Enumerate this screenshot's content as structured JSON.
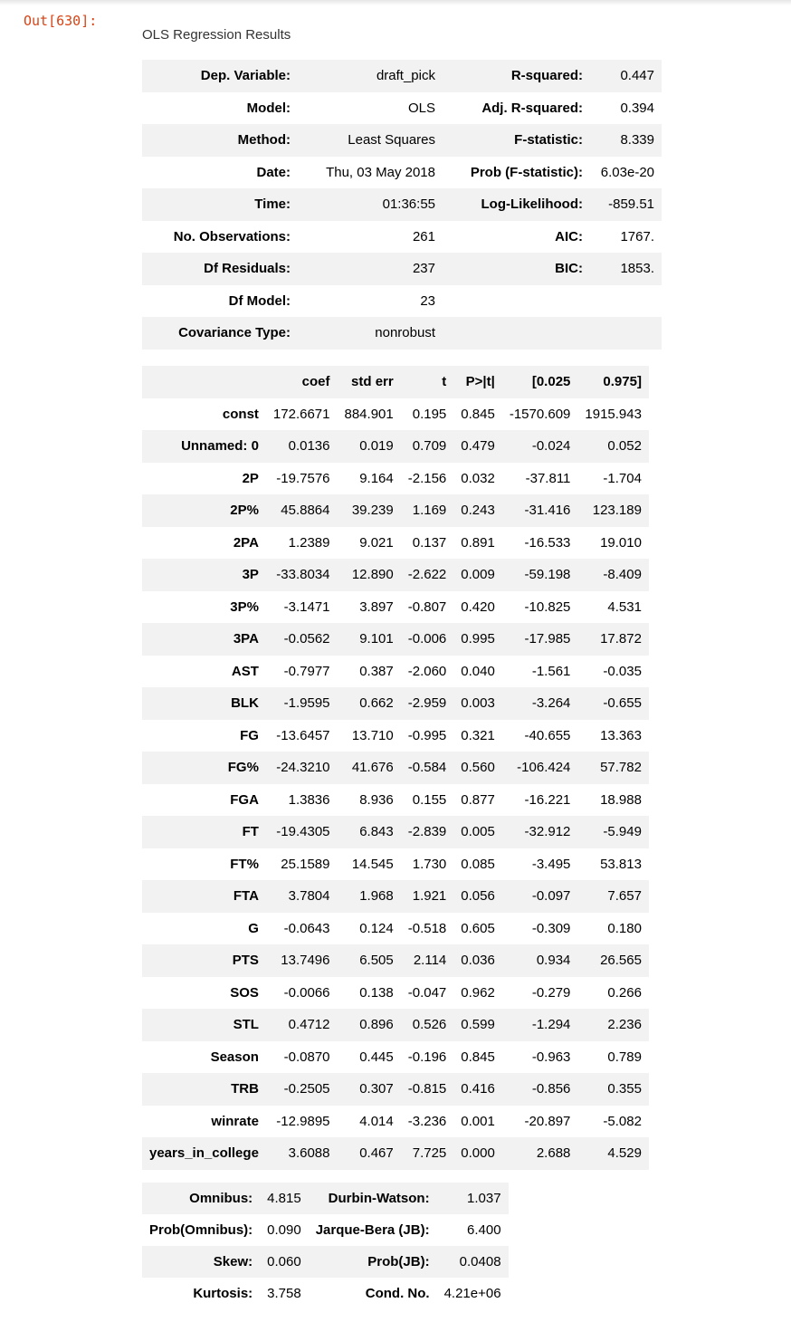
{
  "cell_prompt": "Out[630]:",
  "caption": "OLS Regression Results",
  "summary_rows": [
    [
      "Dep. Variable:",
      "draft_pick",
      "R-squared:",
      "0.447"
    ],
    [
      "Model:",
      "OLS",
      "Adj. R-squared:",
      "0.394"
    ],
    [
      "Method:",
      "Least Squares",
      "F-statistic:",
      "8.339"
    ],
    [
      "Date:",
      "Thu, 03 May 2018",
      "Prob (F-statistic):",
      "6.03e-20"
    ],
    [
      "Time:",
      "01:36:55",
      "Log-Likelihood:",
      "-859.51"
    ],
    [
      "No. Observations:",
      "261",
      "AIC:",
      "1767."
    ],
    [
      "Df Residuals:",
      "237",
      "BIC:",
      "1853."
    ],
    [
      "Df Model:",
      "23",
      "",
      ""
    ],
    [
      "Covariance Type:",
      "nonrobust",
      "",
      ""
    ]
  ],
  "coef_header": [
    "",
    "coef",
    "std err",
    "t",
    "P>|t|",
    "[0.025",
    "0.975]"
  ],
  "coef_rows": [
    [
      "const",
      "172.6671",
      "884.901",
      "0.195",
      "0.845",
      "-1570.609",
      "1915.943"
    ],
    [
      "Unnamed: 0",
      "0.0136",
      "0.019",
      "0.709",
      "0.479",
      "-0.024",
      "0.052"
    ],
    [
      "2P",
      "-19.7576",
      "9.164",
      "-2.156",
      "0.032",
      "-37.811",
      "-1.704"
    ],
    [
      "2P%",
      "45.8864",
      "39.239",
      "1.169",
      "0.243",
      "-31.416",
      "123.189"
    ],
    [
      "2PA",
      "1.2389",
      "9.021",
      "0.137",
      "0.891",
      "-16.533",
      "19.010"
    ],
    [
      "3P",
      "-33.8034",
      "12.890",
      "-2.622",
      "0.009",
      "-59.198",
      "-8.409"
    ],
    [
      "3P%",
      "-3.1471",
      "3.897",
      "-0.807",
      "0.420",
      "-10.825",
      "4.531"
    ],
    [
      "3PA",
      "-0.0562",
      "9.101",
      "-0.006",
      "0.995",
      "-17.985",
      "17.872"
    ],
    [
      "AST",
      "-0.7977",
      "0.387",
      "-2.060",
      "0.040",
      "-1.561",
      "-0.035"
    ],
    [
      "BLK",
      "-1.9595",
      "0.662",
      "-2.959",
      "0.003",
      "-3.264",
      "-0.655"
    ],
    [
      "FG",
      "-13.6457",
      "13.710",
      "-0.995",
      "0.321",
      "-40.655",
      "13.363"
    ],
    [
      "FG%",
      "-24.3210",
      "41.676",
      "-0.584",
      "0.560",
      "-106.424",
      "57.782"
    ],
    [
      "FGA",
      "1.3836",
      "8.936",
      "0.155",
      "0.877",
      "-16.221",
      "18.988"
    ],
    [
      "FT",
      "-19.4305",
      "6.843",
      "-2.839",
      "0.005",
      "-32.912",
      "-5.949"
    ],
    [
      "FT%",
      "25.1589",
      "14.545",
      "1.730",
      "0.085",
      "-3.495",
      "53.813"
    ],
    [
      "FTA",
      "3.7804",
      "1.968",
      "1.921",
      "0.056",
      "-0.097",
      "7.657"
    ],
    [
      "G",
      "-0.0643",
      "0.124",
      "-0.518",
      "0.605",
      "-0.309",
      "0.180"
    ],
    [
      "PTS",
      "13.7496",
      "6.505",
      "2.114",
      "0.036",
      "0.934",
      "26.565"
    ],
    [
      "SOS",
      "-0.0066",
      "0.138",
      "-0.047",
      "0.962",
      "-0.279",
      "0.266"
    ],
    [
      "STL",
      "0.4712",
      "0.896",
      "0.526",
      "0.599",
      "-1.294",
      "2.236"
    ],
    [
      "Season",
      "-0.0870",
      "0.445",
      "-0.196",
      "0.845",
      "-0.963",
      "0.789"
    ],
    [
      "TRB",
      "-0.2505",
      "0.307",
      "-0.815",
      "0.416",
      "-0.856",
      "0.355"
    ],
    [
      "winrate",
      "-12.9895",
      "4.014",
      "-3.236",
      "0.001",
      "-20.897",
      "-5.082"
    ],
    [
      "years_in_college",
      "3.6088",
      "0.467",
      "7.725",
      "0.000",
      "2.688",
      "4.529"
    ]
  ],
  "diag_rows": [
    [
      "Omnibus:",
      "4.815",
      "Durbin-Watson:",
      "1.037"
    ],
    [
      "Prob(Omnibus):",
      "0.090",
      "Jarque-Bera (JB):",
      "6.400"
    ],
    [
      "Skew:",
      "0.060",
      "Prob(JB):",
      "0.0408"
    ],
    [
      "Kurtosis:",
      "3.758",
      "Cond. No.",
      "4.21e+06"
    ]
  ]
}
